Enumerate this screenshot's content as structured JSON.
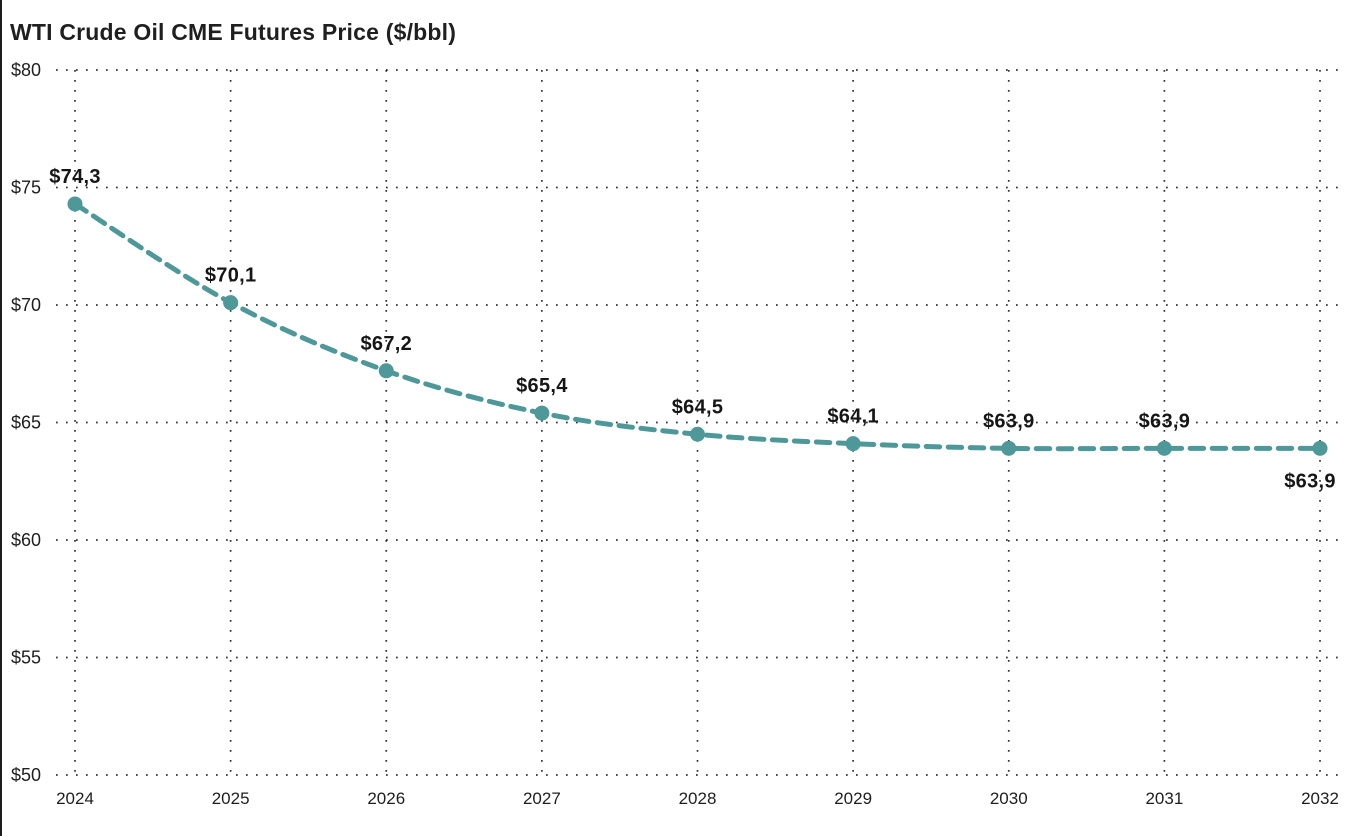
{
  "chart_data": {
    "type": "line",
    "title": "WTI Crude Oil CME Futures Price ($/bbl)",
    "x": [
      2024,
      2025,
      2026,
      2027,
      2028,
      2029,
      2030,
      2031,
      2032
    ],
    "xtick_labels": [
      "2024",
      "2025",
      "2026",
      "2027",
      "2028",
      "2029",
      "2030",
      "2031",
      "2032"
    ],
    "series": [
      {
        "name": "WTI Crude Oil CME Futures Price",
        "values": [
          74.3,
          70.1,
          67.2,
          65.4,
          64.5,
          64.1,
          63.9,
          63.9,
          63.9
        ],
        "point_labels": [
          "$74,3",
          "$70,1",
          "$67,2",
          "$65,4",
          "$64,5",
          "$64,1",
          "$63,9",
          "$63,9",
          "$63,9"
        ]
      }
    ],
    "xlabel": "",
    "ylabel": "",
    "ylim": [
      50,
      80
    ],
    "ytick_values": [
      50,
      55,
      60,
      65,
      70,
      75,
      80
    ],
    "ytick_labels": [
      "$50",
      "$55",
      "$60",
      "$65",
      "$70",
      "$75",
      "$80"
    ],
    "grid": "dotted-both-axes",
    "legend": "none",
    "line_style": "dashed",
    "marker": "circle",
    "smoothing": "spline",
    "last_point_label_position": "below",
    "colors": {
      "line": "#4e989a",
      "marker": "#4e989a",
      "data_label": "#161616",
      "axis_label": "#1e1e1e",
      "grid": "#222222",
      "title": "#1f1f1f",
      "background": "#ffffff"
    }
  }
}
